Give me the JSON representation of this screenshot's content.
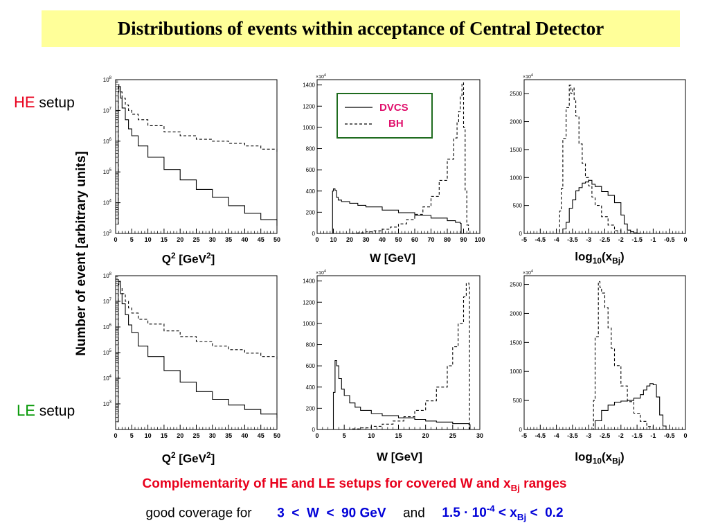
{
  "title": "Distributions of events within acceptance of Central Detector",
  "setups": {
    "he": {
      "key": "HE",
      "word": " setup",
      "color": "#e8001c"
    },
    "le": {
      "key": "LE",
      "word": " setup",
      "color": "#0a9a0a"
    }
  },
  "y_axis_label": "Number of event [arbitrary units]",
  "legend": {
    "dvcs": "DVCS",
    "bh": "BH"
  },
  "xtitles": {
    "q2": {
      "base": "Q",
      "sup": "2",
      "unit": " [GeV",
      "unit_sup": "2",
      "close": "]"
    },
    "w": "W [GeV]",
    "xbj": {
      "log": "log",
      "log_sub": "10",
      "open": "(x",
      "sub": "Bj",
      "close": ")"
    }
  },
  "conclusion": {
    "pre": "Complementarity of HE and LE setups for covered W and x",
    "sub": "Bj",
    "post": " ranges"
  },
  "coverage": {
    "pre": "good coverage for",
    "w_range": "3  <  W  <  90 GeV",
    "and": "and",
    "x_pre": "1.5 · 10",
    "x_sup": "-4",
    "x_mid": " < x",
    "x_sub": "Bj",
    "x_post": " <  0.2"
  },
  "chart_data": [
    {
      "id": "he-q2",
      "type": "line",
      "setup": "HE",
      "log_y": true,
      "xlim": [
        0,
        50
      ],
      "ylim": [
        1000,
        100000000
      ],
      "xticks": [
        0,
        5,
        10,
        15,
        20,
        25,
        30,
        35,
        40,
        45,
        50
      ],
      "yticks": [
        {
          "v": 1000,
          "label": "10",
          "sup": "3"
        },
        {
          "v": 10000,
          "label": "10",
          "sup": "4"
        },
        {
          "v": 100000,
          "label": "10",
          "sup": "5"
        },
        {
          "v": 1000000,
          "label": "10",
          "sup": "6"
        },
        {
          "v": 10000000,
          "label": "10",
          "sup": "7"
        },
        {
          "v": 100000000,
          "label": "10",
          "sup": "8"
        }
      ],
      "series": [
        {
          "id": "dvcs",
          "style": "solid",
          "x": [
            0.6,
            0.8,
            1,
            1.5,
            2,
            3,
            4,
            5,
            7,
            10,
            15,
            20,
            25,
            30,
            35,
            40,
            45,
            50
          ],
          "y": [
            2000,
            40000000,
            60000000,
            25000000,
            12000000,
            5000000,
            2500000,
            1500000,
            700000,
            300000,
            120000,
            55000,
            27000,
            15000,
            8000,
            4500,
            2800,
            1800
          ]
        },
        {
          "id": "bh",
          "style": "dashed",
          "x": [
            0.6,
            0.8,
            1,
            1.5,
            2,
            3,
            4,
            5,
            7,
            10,
            15,
            20,
            25,
            30,
            35,
            40,
            45,
            50
          ],
          "y": [
            2000,
            70000000,
            60000000,
            40000000,
            25000000,
            15000000,
            10000000,
            7500000,
            5000000,
            3200000,
            2000000,
            1500000,
            1150000,
            1000000,
            850000,
            700000,
            550000,
            420000
          ]
        }
      ]
    },
    {
      "id": "he-w",
      "type": "line",
      "setup": "HE",
      "log_y": false,
      "y_multiplier": "×10",
      "y_multiplier_sup": "4",
      "xlim": [
        0,
        100
      ],
      "ylim": [
        0,
        1450
      ],
      "xticks": [
        0,
        10,
        20,
        30,
        40,
        50,
        60,
        70,
        80,
        90,
        100
      ],
      "yticks": [
        {
          "v": 0,
          "label": "0"
        },
        {
          "v": 200,
          "label": "200"
        },
        {
          "v": 400,
          "label": "400"
        },
        {
          "v": 600,
          "label": "600"
        },
        {
          "v": 800,
          "label": "800"
        },
        {
          "v": 1000,
          "label": "1000"
        },
        {
          "v": 1200,
          "label": "1200"
        },
        {
          "v": 1400,
          "label": "1400"
        }
      ],
      "series": [
        {
          "id": "dvcs",
          "style": "solid",
          "x": [
            9.5,
            9.5,
            10,
            11,
            12,
            13,
            15,
            20,
            25,
            30,
            40,
            50,
            60,
            70,
            80,
            85,
            88,
            88.5
          ],
          "y": [
            0,
            400,
            420,
            405,
            340,
            315,
            300,
            285,
            265,
            250,
            220,
            195,
            170,
            145,
            120,
            105,
            95,
            0
          ]
        },
        {
          "id": "bh",
          "style": "dashed",
          "x": [
            9.5,
            15,
            20,
            25,
            30,
            35,
            40,
            45,
            50,
            55,
            60,
            65,
            70,
            75,
            80,
            84,
            86,
            87,
            88,
            89,
            90,
            91,
            92,
            93
          ],
          "y": [
            0,
            0,
            2,
            5,
            15,
            25,
            40,
            60,
            90,
            130,
            180,
            250,
            350,
            500,
            700,
            900,
            1050,
            1150,
            1300,
            1420,
            1000,
            400,
            80,
            0
          ]
        }
      ]
    },
    {
      "id": "he-xbj",
      "type": "line",
      "setup": "HE",
      "log_y": false,
      "y_multiplier": "×10",
      "y_multiplier_sup": "4",
      "xlim": [
        -5,
        0
      ],
      "ylim": [
        0,
        2750
      ],
      "xticks": [
        -5,
        -4.5,
        -4,
        -3.5,
        -3,
        -2.5,
        -2,
        -1.5,
        -1,
        -0.5,
        0
      ],
      "yticks": [
        {
          "v": 0,
          "label": "0"
        },
        {
          "v": 500,
          "label": "500"
        },
        {
          "v": 1000,
          "label": "1000"
        },
        {
          "v": 1500,
          "label": "1500"
        },
        {
          "v": 2000,
          "label": "2000"
        },
        {
          "v": 2500,
          "label": "2500"
        }
      ],
      "series": [
        {
          "id": "dvcs",
          "style": "solid",
          "x": [
            -3.85,
            -3.8,
            -3.7,
            -3.6,
            -3.5,
            -3.4,
            -3.3,
            -3.2,
            -3.1,
            -3.0,
            -2.9,
            -2.8,
            -2.6,
            -2.4,
            -2.2,
            -2.0,
            -1.9,
            -1.8,
            -1.7,
            -1.6,
            -1.5,
            -1.4
          ],
          "y": [
            0,
            80,
            200,
            450,
            600,
            760,
            820,
            900,
            920,
            950,
            880,
            840,
            750,
            680,
            550,
            330,
            170,
            60,
            30,
            10,
            5,
            0
          ]
        },
        {
          "id": "bh",
          "style": "dashed",
          "x": [
            -4.0,
            -3.9,
            -3.85,
            -3.8,
            -3.7,
            -3.6,
            -3.55,
            -3.5,
            -3.45,
            -3.4,
            -3.3,
            -3.2,
            -3.1,
            -3.0,
            -2.9,
            -2.8,
            -2.6,
            -2.4,
            -2.2,
            -2.0
          ],
          "y": [
            0,
            400,
            800,
            1700,
            2250,
            2650,
            2500,
            2600,
            2400,
            2100,
            1600,
            1250,
            1000,
            850,
            650,
            500,
            300,
            150,
            50,
            0
          ]
        }
      ]
    },
    {
      "id": "le-q2",
      "type": "line",
      "setup": "LE",
      "log_y": true,
      "xlim": [
        0,
        50
      ],
      "ylim": [
        100,
        100000000
      ],
      "xticks": [
        0,
        5,
        10,
        15,
        20,
        25,
        30,
        35,
        40,
        45,
        50
      ],
      "yticks": [
        {
          "v": 1000,
          "label": "10",
          "sup": "3"
        },
        {
          "v": 10000,
          "label": "10",
          "sup": "4"
        },
        {
          "v": 100000,
          "label": "10",
          "sup": "5"
        },
        {
          "v": 1000000,
          "label": "10",
          "sup": "6"
        },
        {
          "v": 10000000,
          "label": "10",
          "sup": "7"
        },
        {
          "v": 100000000,
          "label": "10",
          "sup": "8"
        }
      ],
      "series": [
        {
          "id": "dvcs",
          "style": "solid",
          "x": [
            0.6,
            0.8,
            1,
            1.5,
            2,
            3,
            4,
            5,
            7,
            10,
            15,
            20,
            25,
            30,
            35,
            40,
            45,
            50
          ],
          "y": [
            200,
            45000000,
            60000000,
            20000000,
            8000000,
            3000000,
            1200000,
            600000,
            180000,
            70000,
            20000,
            7000,
            3000,
            1500,
            900,
            600,
            400,
            280
          ]
        },
        {
          "id": "bh",
          "style": "dashed",
          "x": [
            0.6,
            0.8,
            1,
            1.5,
            2,
            3,
            4,
            5,
            7,
            10,
            15,
            20,
            25,
            30,
            35,
            40,
            45,
            50
          ],
          "y": [
            200,
            70000000,
            60000000,
            35000000,
            20000000,
            10000000,
            5500000,
            3500000,
            2000000,
            1300000,
            700000,
            420000,
            270000,
            180000,
            130000,
            95000,
            70000,
            55000
          ]
        }
      ]
    },
    {
      "id": "le-w",
      "type": "line",
      "setup": "LE",
      "log_y": false,
      "y_multiplier": "×10",
      "y_multiplier_sup": "4",
      "xlim": [
        0,
        30
      ],
      "ylim": [
        0,
        1450
      ],
      "xticks": [
        0,
        5,
        10,
        15,
        20,
        25,
        30
      ],
      "yticks": [
        {
          "v": 0,
          "label": "0"
        },
        {
          "v": 200,
          "label": "200"
        },
        {
          "v": 400,
          "label": "400"
        },
        {
          "v": 600,
          "label": "600"
        },
        {
          "v": 800,
          "label": "800"
        },
        {
          "v": 1000,
          "label": "1000"
        },
        {
          "v": 1200,
          "label": "1200"
        },
        {
          "v": 1400,
          "label": "1400"
        }
      ],
      "series": [
        {
          "id": "dvcs",
          "style": "solid",
          "x": [
            2.8,
            3.0,
            3.3,
            3.6,
            4.0,
            4.5,
            5,
            6,
            7,
            8,
            10,
            12,
            15,
            18,
            20,
            22,
            25,
            28,
            28.2
          ],
          "y": [
            0,
            350,
            650,
            600,
            480,
            380,
            320,
            250,
            210,
            180,
            150,
            130,
            110,
            95,
            80,
            70,
            55,
            45,
            0
          ]
        },
        {
          "id": "bh",
          "style": "dashed",
          "x": [
            3,
            6,
            8,
            10,
            12,
            14,
            16,
            18,
            20,
            22,
            24,
            25,
            26,
            27,
            27.5,
            28,
            28.1
          ],
          "y": [
            0,
            5,
            15,
            30,
            50,
            80,
            120,
            180,
            270,
            400,
            600,
            780,
            1000,
            1250,
            1380,
            1350,
            0
          ]
        }
      ]
    },
    {
      "id": "le-xbj",
      "type": "line",
      "setup": "LE",
      "log_y": false,
      "y_multiplier": "×10",
      "y_multiplier_sup": "4",
      "xlim": [
        -5,
        0
      ],
      "ylim": [
        0,
        2650
      ],
      "xticks": [
        -5,
        -4.5,
        -4,
        -3.5,
        -3,
        -2.5,
        -2,
        -1.5,
        -1,
        -0.5,
        0
      ],
      "yticks": [
        {
          "v": 0,
          "label": "0"
        },
        {
          "v": 500,
          "label": "500"
        },
        {
          "v": 1000,
          "label": "1000"
        },
        {
          "v": 1500,
          "label": "1500"
        },
        {
          "v": 2000,
          "label": "2000"
        },
        {
          "v": 2500,
          "label": "2500"
        }
      ],
      "series": [
        {
          "id": "dvcs",
          "style": "solid",
          "x": [
            -2.9,
            -2.8,
            -2.6,
            -2.4,
            -2.2,
            -2.0,
            -1.8,
            -1.6,
            -1.4,
            -1.3,
            -1.2,
            -1.1,
            -1.0,
            -0.9,
            -0.8,
            -0.7,
            -0.6
          ],
          "y": [
            0,
            150,
            330,
            420,
            470,
            490,
            500,
            540,
            600,
            680,
            750,
            790,
            770,
            560,
            250,
            60,
            0
          ]
        },
        {
          "id": "bh",
          "style": "dashed",
          "x": [
            -2.9,
            -2.85,
            -2.8,
            -2.7,
            -2.65,
            -2.6,
            -2.5,
            -2.4,
            -2.3,
            -2.2,
            -2.0,
            -1.8,
            -1.6,
            -1.4,
            -1.2,
            -1.0
          ],
          "y": [
            0,
            500,
            1600,
            2550,
            2450,
            2350,
            2100,
            1750,
            1400,
            1100,
            750,
            480,
            280,
            140,
            50,
            0
          ]
        }
      ]
    }
  ]
}
